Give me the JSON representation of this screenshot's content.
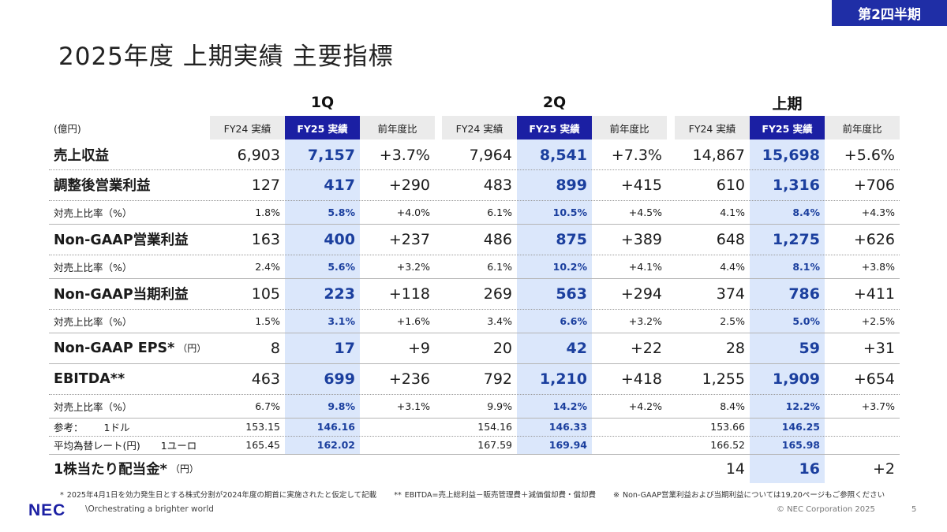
{
  "tag": "第2四半期",
  "title": "2025年度 上期実績 主要指標",
  "unit": "(億円)",
  "groups": [
    "1Q",
    "2Q",
    "上期"
  ],
  "headers": [
    "FY24 実績",
    "FY25 実績",
    "前年度比"
  ],
  "rows": [
    {
      "label": "売上収益",
      "size": "big",
      "values": [
        "6,903",
        "7,157",
        "+3.7%",
        "7,964",
        "8,541",
        "+7.3%",
        "14,867",
        "15,698",
        "+5.6%"
      ]
    },
    {
      "label": "調整後営業利益",
      "size": "big",
      "values": [
        "127",
        "417",
        "+290",
        "483",
        "899",
        "+415",
        "610",
        "1,316",
        "+706"
      ]
    },
    {
      "label": "対売上比率（%）",
      "size": "small",
      "values": [
        "1.8%",
        "5.8%",
        "+4.0%",
        "6.1%",
        "10.5%",
        "+4.5%",
        "4.1%",
        "8.4%",
        "+4.3%"
      ]
    },
    {
      "label": "Non-GAAP営業利益",
      "size": "big",
      "values": [
        "163",
        "400",
        "+237",
        "486",
        "875",
        "+389",
        "648",
        "1,275",
        "+626"
      ]
    },
    {
      "label": "対売上比率（%）",
      "size": "small",
      "values": [
        "2.4%",
        "5.6%",
        "+3.2%",
        "6.1%",
        "10.2%",
        "+4.1%",
        "4.4%",
        "8.1%",
        "+3.8%"
      ]
    },
    {
      "label": "Non-GAAP当期利益",
      "size": "big",
      "values": [
        "105",
        "223",
        "+118",
        "269",
        "563",
        "+294",
        "374",
        "786",
        "+411"
      ]
    },
    {
      "label": "対売上比率（%）",
      "size": "small",
      "values": [
        "1.5%",
        "3.1%",
        "+1.6%",
        "3.4%",
        "6.6%",
        "+3.2%",
        "2.5%",
        "5.0%",
        "+2.5%"
      ]
    },
    {
      "label": "Non-GAAP EPS*",
      "unit": "（円）",
      "size": "big",
      "values": [
        "8",
        "17",
        "+9",
        "20",
        "42",
        "+22",
        "28",
        "59",
        "+31"
      ]
    },
    {
      "label": "EBITDA**",
      "size": "big",
      "values": [
        "463",
        "699",
        "+236",
        "792",
        "1,210",
        "+418",
        "1,255",
        "1,909",
        "+654"
      ]
    },
    {
      "label": "対売上比率（%）",
      "size": "small",
      "values": [
        "6.7%",
        "9.8%",
        "+3.1%",
        "9.9%",
        "14.2%",
        "+4.2%",
        "8.4%",
        "12.2%",
        "+3.7%"
      ]
    },
    {
      "label": "参考：",
      "sub": "1ドル",
      "size": "small",
      "values": [
        "153.15",
        "146.16",
        "",
        "154.16",
        "146.33",
        "",
        "153.66",
        "146.25",
        ""
      ]
    },
    {
      "label": "平均為替レート(円)",
      "sub": "1ユーロ",
      "size": "small",
      "values": [
        "165.45",
        "162.02",
        "",
        "167.59",
        "169.94",
        "",
        "166.52",
        "165.98",
        ""
      ]
    },
    {
      "label": "1株当たり配当金*",
      "unit": "（円）",
      "size": "big",
      "values": [
        "",
        "",
        "",
        "",
        "",
        "",
        "14",
        "16",
        "+2"
      ]
    }
  ],
  "footnotes": [
    "* 2025年4月1日を効力発生日とする株式分割が2024年度の期首に実施されたと仮定して記載",
    "** EBITDA=売上総利益－販売管理費＋減価償却費・償却費",
    "※ Non-GAAP営業利益および当期利益については19,20ページもご参照ください"
  ],
  "logo": "NEC",
  "slogan": "\\Orchestrating a brighter world",
  "copyright": "© NEC Corporation 2025",
  "page_number": "5",
  "colors": {
    "accent": "#1b1fa3",
    "highlight": "#dbe7fb",
    "value_highlight": "#1b3f9e"
  }
}
